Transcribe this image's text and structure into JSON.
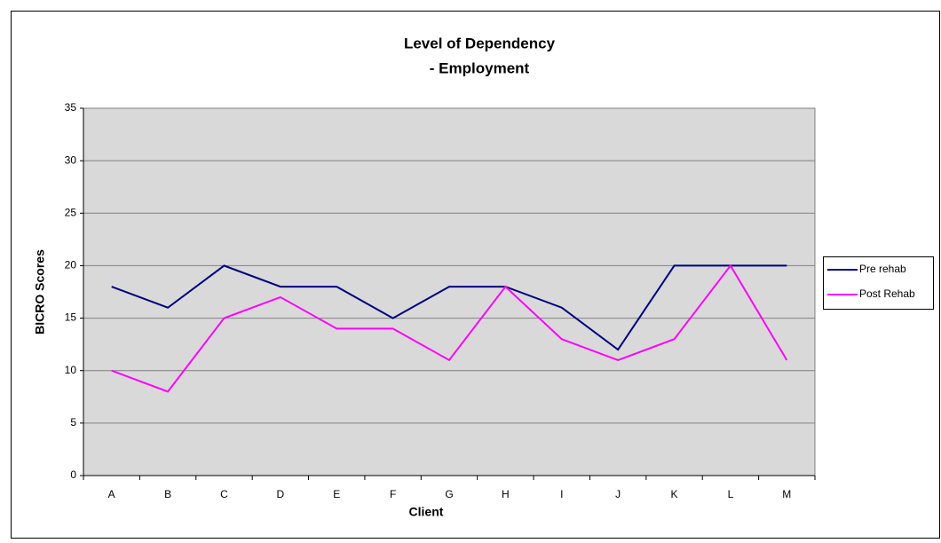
{
  "chart_data": {
    "type": "line",
    "title": [
      "Level of Dependency",
      "- Employment"
    ],
    "x_label": "Client",
    "y_label": "BICRO Scores",
    "categories": [
      "A",
      "B",
      "C",
      "D",
      "E",
      "F",
      "G",
      "H",
      "I",
      "J",
      "K",
      "L",
      "M"
    ],
    "series": [
      {
        "name": "Pre rehab",
        "color": "#000080",
        "values": [
          18,
          16,
          20,
          18,
          18,
          15,
          18,
          18,
          16,
          12,
          20,
          20,
          20
        ]
      },
      {
        "name": "Post Rehab",
        "color": "#ff00ff",
        "values": [
          10,
          8,
          15,
          17,
          14,
          14,
          11,
          18,
          13,
          11,
          13,
          20,
          11
        ]
      }
    ],
    "ylim": [
      0,
      35
    ],
    "yticks": [
      0,
      5,
      10,
      15,
      20,
      25,
      30,
      35
    ],
    "grid": true,
    "legend": "right"
  }
}
